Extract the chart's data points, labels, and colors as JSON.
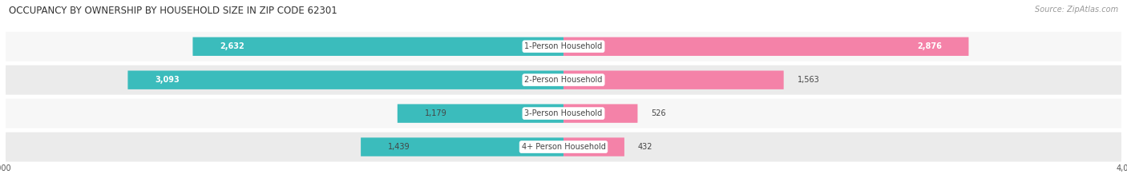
{
  "title": "OCCUPANCY BY OWNERSHIP BY HOUSEHOLD SIZE IN ZIP CODE 62301",
  "source": "Source: ZipAtlas.com",
  "categories": [
    "1-Person Household",
    "2-Person Household",
    "3-Person Household",
    "4+ Person Household"
  ],
  "owner_values": [
    2632,
    3093,
    1179,
    1439
  ],
  "renter_values": [
    2876,
    1563,
    526,
    432
  ],
  "max_val": 4000,
  "owner_color": "#3BBCBC",
  "renter_color": "#F482A8",
  "row_bg_light": "#F7F7F7",
  "row_bg_dark": "#EBEBEB",
  "title_fontsize": 8.5,
  "label_fontsize": 7.0,
  "value_fontsize": 7.0,
  "axis_fontsize": 7.0,
  "source_fontsize": 7.0,
  "bar_height": 0.62,
  "figsize": [
    14.06,
    2.33
  ],
  "dpi": 100
}
